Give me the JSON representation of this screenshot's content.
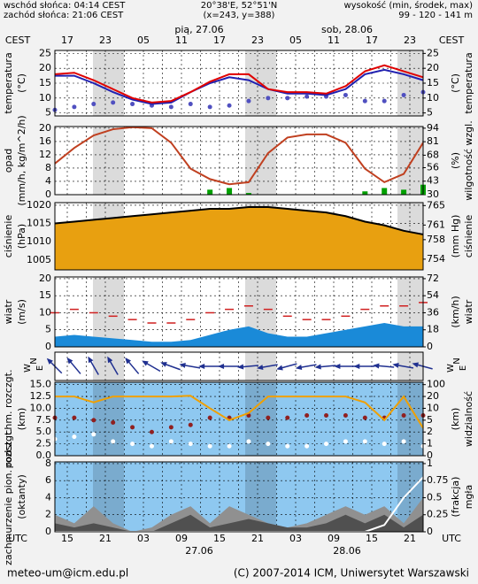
{
  "header": {
    "sunrise": "wschód słońca: 04:14 CEST",
    "sunset": "zachód słońca: 21:06 CEST",
    "coords": "20°38'E, 52°51'N",
    "grid": "(x=243, y=388)",
    "height_title": "wysokość (min, środek, max)",
    "height_values": "99 - 120 - 141 m"
  },
  "time_axis": {
    "top_label": "CEST",
    "top_hours": [
      "17",
      "23",
      "05",
      "11",
      "17",
      "23",
      "05",
      "11",
      "17",
      "23"
    ],
    "top_dates": [
      "pią, 27.06",
      "sob, 28.06"
    ],
    "bottom_label": "UTC",
    "bottom_hours": [
      "15",
      "21",
      "03",
      "09",
      "15",
      "21",
      "03",
      "09",
      "15",
      "21"
    ],
    "bottom_dates": [
      "27.06",
      "28.06"
    ]
  },
  "footer": {
    "email": "meteo-um@icm.edu.pl",
    "copyright": "(C) 2007-2014 ICM, Uniwersytet Warszawski"
  },
  "chart_data": [
    {
      "type": "line",
      "ylabel": "temperatura",
      "yunit": "(°C)",
      "y2label": "temperatura",
      "y2unit": "(°C)",
      "ylim": [
        4,
        26
      ],
      "yticks": [
        5,
        10,
        15,
        20,
        25
      ],
      "y2lim": [
        4,
        26
      ],
      "y2ticks": [
        5,
        10,
        15,
        20,
        25
      ],
      "grid": true,
      "background": "#ffffff",
      "series": [
        {
          "type": "dots",
          "color": "#5050c0",
          "values": [
            6,
            7,
            8,
            8.5,
            8,
            7.5,
            7,
            8,
            7,
            7.5,
            9,
            10,
            10,
            10.5,
            10.5,
            11,
            9,
            9,
            11,
            12
          ]
        },
        {
          "type": "line",
          "color": "#2020b0",
          "values": [
            17.5,
            17.5,
            15,
            12,
            9.5,
            8,
            8.5,
            12,
            15,
            17,
            16,
            13,
            11.5,
            11.5,
            11,
            13,
            18,
            19.5,
            18,
            16
          ]
        },
        {
          "type": "line",
          "color": "#e00000",
          "values": [
            18,
            18.5,
            16,
            13,
            10,
            8.5,
            9,
            12,
            15.5,
            18,
            18,
            13,
            12,
            12,
            11.5,
            14,
            19,
            21,
            19,
            17
          ]
        }
      ]
    },
    {
      "type": "line",
      "ylabel": "opad",
      "yunit": "(mm/h, kg/m^2/h)",
      "y2label": "wilgotność wzgl.",
      "y2unit": "(%)",
      "ylim": [
        0,
        20.5
      ],
      "yticks": [
        0,
        4,
        8,
        12,
        16,
        20
      ],
      "y2lim": [
        30,
        95.6
      ],
      "y2ticks": [
        30,
        43,
        56,
        68,
        81,
        94
      ],
      "grid": true,
      "background": "#ffffff",
      "series": [
        {
          "type": "bars",
          "color": "#00a000",
          "values": [
            0,
            0,
            0,
            0,
            0,
            0,
            0,
            0,
            1.5,
            2,
            0.5,
            0,
            0,
            0,
            0,
            0,
            1,
            2,
            1.5,
            3
          ]
        },
        {
          "type": "line",
          "axis": "y2",
          "color": "#c04020",
          "values": [
            60,
            75,
            87,
            93,
            95,
            94,
            80,
            55,
            45,
            40,
            42,
            70,
            85,
            88,
            88,
            80,
            55,
            42,
            50,
            80
          ]
        }
      ]
    },
    {
      "type": "area",
      "ylabel": "ciśnienie",
      "yunit": "(hPa)",
      "y2label": "ciśnienie",
      "y2unit": "(mm Hg)",
      "ylim": [
        1002.3,
        1020.7
      ],
      "yticks": [
        1005,
        1010,
        1015,
        1020
      ],
      "y2lim": [
        751.8,
        765.6
      ],
      "y2ticks": [
        754,
        758,
        761,
        765
      ],
      "grid": true,
      "background": "#ffffff",
      "series": [
        {
          "type": "area",
          "color": "#e8a010",
          "values": [
            1015,
            1015.5,
            1016,
            1016.5,
            1017,
            1017.5,
            1018,
            1018.5,
            1019,
            1019,
            1019.5,
            1019.5,
            1019,
            1018.5,
            1018,
            1017,
            1015.5,
            1014.5,
            1013,
            1012
          ]
        },
        {
          "type": "line",
          "color": "#000000",
          "values": [
            1015,
            1015.5,
            1016,
            1016.5,
            1017,
            1017.5,
            1018,
            1018.5,
            1019,
            1019,
            1019.5,
            1019.5,
            1019,
            1018.5,
            1018,
            1017,
            1015.5,
            1014.5,
            1013,
            1012
          ]
        }
      ]
    },
    {
      "type": "area",
      "ylabel": "wiatr",
      "yunit": "(m/s)",
      "y2label": "wiatr",
      "y2unit": "(km/h)",
      "ylim": [
        0,
        20.5
      ],
      "yticks": [
        0,
        5,
        10,
        15,
        20
      ],
      "y2lim": [
        0,
        73.8
      ],
      "y2ticks": [
        0,
        18,
        36,
        54,
        72
      ],
      "grid": true,
      "background": "#ffffff",
      "series": [
        {
          "type": "area",
          "color": "#1a8ad8",
          "values": [
            3,
            3.5,
            3,
            2.5,
            2,
            1.5,
            1.5,
            2,
            3.5,
            5,
            6,
            4,
            3,
            3,
            4,
            5,
            6,
            7,
            6,
            6
          ]
        },
        {
          "type": "dashes",
          "color": "#d02020",
          "values": [
            10,
            11,
            10,
            9,
            8,
            7,
            7,
            8,
            10,
            11,
            12,
            11,
            9,
            8,
            8,
            9,
            11,
            12,
            12,
            13
          ]
        }
      ]
    },
    {
      "type": "arrows",
      "compass": [
        "W",
        "N",
        "E"
      ],
      "background": "#ffffff",
      "series": [
        {
          "type": "arrows",
          "color": "#203090",
          "values": [
            315,
            320,
            330,
            330,
            320,
            300,
            290,
            280,
            270,
            270,
            265,
            260,
            255,
            260,
            265,
            270,
            270,
            275,
            280,
            285
          ]
        }
      ]
    },
    {
      "type": "scatter",
      "ylabel": "podst. chm. rozczgt.",
      "yunit": "(km)",
      "y2label": "widzialność",
      "y2unit": "(km)",
      "ylim": [
        0,
        15.5
      ],
      "yticks": [
        {
          "value": 0,
          "label": "0.0"
        },
        {
          "value": 2.5,
          "label": "2.5"
        },
        {
          "value": 5,
          "label": "5.0"
        },
        {
          "value": 7.5,
          "label": "7.5"
        },
        {
          "value": 10,
          "label": "10.0"
        },
        {
          "value": 12.5,
          "label": "12.5"
        },
        {
          "value": 15,
          "label": "15.0"
        }
      ],
      "y2lim": [
        0,
        100
      ],
      "y2ticks": [
        0,
        1,
        2,
        5,
        10,
        20,
        100
      ],
      "y2scale": "tick-spaced",
      "grid": true,
      "background": "#8ec8f0",
      "series": [
        {
          "type": "dots",
          "color": "#902020",
          "values": [
            8,
            8,
            7.5,
            7,
            6,
            5,
            6,
            6.5,
            8,
            8,
            8.5,
            8,
            8,
            8.5,
            8.5,
            8.5,
            8,
            8,
            8.5,
            8.5
          ]
        },
        {
          "type": "dots",
          "color": "#ffffff",
          "values": [
            3.5,
            4,
            4.5,
            3,
            2.5,
            2,
            3,
            2.5,
            2,
            2,
            3,
            2.5,
            2,
            2,
            2.5,
            3,
            3,
            2.5,
            3,
            2
          ]
        },
        {
          "type": "line",
          "axis": "y2",
          "color": "#f0a000",
          "values": [
            20,
            20,
            15,
            20,
            20,
            20,
            20,
            25,
            10,
            5,
            8,
            20,
            20,
            20,
            20,
            20,
            15,
            5,
            20,
            3
          ]
        }
      ]
    },
    {
      "type": "area",
      "ylabel": "zachmurzenie pion. rozczgt.",
      "yunit": "(oktanty)",
      "y2label": "mgła",
      "y2unit": "(frakcja)",
      "ylim": [
        0,
        8.2
      ],
      "yticks": [
        0,
        2,
        4,
        6,
        8
      ],
      "y2lim": [
        0,
        1.025
      ],
      "y2ticks": [
        0,
        0.25,
        0.5,
        0.75,
        1
      ],
      "grid": true,
      "background": "#8ec8f0",
      "series": [
        {
          "type": "area",
          "color": "#909090",
          "values": [
            2,
            1,
            3,
            1,
            0,
            0.5,
            2,
            3,
            1,
            3,
            2,
            1,
            0.5,
            1,
            2,
            3,
            2,
            3,
            1,
            4
          ]
        },
        {
          "type": "area",
          "color": "#505050",
          "values": [
            1,
            0.5,
            1,
            0.5,
            0,
            0,
            1,
            2,
            0.5,
            1,
            1.5,
            1,
            0.5,
            0.5,
            1,
            2,
            1,
            2,
            0.5,
            2
          ]
        },
        {
          "type": "line",
          "axis": "y2",
          "color": "#ffffff",
          "values": [
            0,
            0,
            0,
            0,
            0,
            0,
            0,
            0,
            0,
            0,
            0,
            0,
            0,
            0,
            0,
            0,
            0,
            0.1,
            0.5,
            0.8
          ]
        }
      ]
    }
  ]
}
